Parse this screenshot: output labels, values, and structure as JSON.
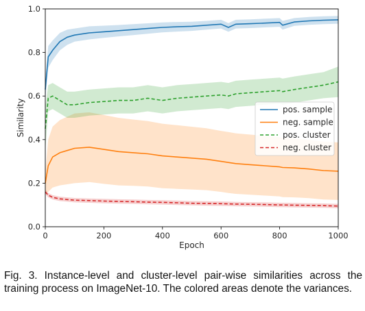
{
  "chart_data": {
    "type": "line",
    "xlabel": "Epoch",
    "ylabel": "Similarity",
    "xlim": [
      0,
      1000
    ],
    "ylim": [
      0.0,
      1.0
    ],
    "x_ticks": [
      0,
      200,
      400,
      600,
      800,
      1000
    ],
    "y_ticks": [
      0.0,
      0.2,
      0.4,
      0.6,
      0.8,
      1.0
    ],
    "x_tick_labels": [
      "0",
      "200",
      "400",
      "600",
      "800",
      "1000"
    ],
    "y_tick_labels": [
      "0.0",
      "0.2",
      "0.4",
      "0.6",
      "0.8",
      "1.0"
    ],
    "grid": false,
    "legend_position": "center-right",
    "x": [
      0,
      10,
      25,
      50,
      75,
      100,
      150,
      200,
      250,
      300,
      350,
      400,
      450,
      500,
      550,
      600,
      625,
      650,
      700,
      750,
      800,
      810,
      850,
      900,
      950,
      1000
    ],
    "series": [
      {
        "name": "pos. sample",
        "color": "#1f77b4",
        "style": "solid",
        "values": [
          0.63,
          0.78,
          0.81,
          0.85,
          0.87,
          0.88,
          0.89,
          0.895,
          0.9,
          0.905,
          0.91,
          0.915,
          0.918,
          0.92,
          0.925,
          0.93,
          0.915,
          0.93,
          0.932,
          0.935,
          0.938,
          0.925,
          0.94,
          0.945,
          0.948,
          0.95
        ],
        "band": [
          0.05,
          0.05,
          0.045,
          0.04,
          0.035,
          0.03,
          0.03,
          0.028,
          0.026,
          0.025,
          0.024,
          0.023,
          0.022,
          0.021,
          0.02,
          0.02,
          0.02,
          0.02,
          0.02,
          0.02,
          0.02,
          0.02,
          0.018,
          0.018,
          0.018,
          0.018
        ]
      },
      {
        "name": "neg. sample",
        "color": "#ff7f0e",
        "style": "solid",
        "values": [
          0.2,
          0.28,
          0.32,
          0.34,
          0.35,
          0.36,
          0.365,
          0.355,
          0.345,
          0.34,
          0.335,
          0.325,
          0.32,
          0.315,
          0.31,
          0.3,
          0.295,
          0.29,
          0.285,
          0.28,
          0.275,
          0.272,
          0.27,
          0.265,
          0.258,
          0.255
        ],
        "band": [
          0.05,
          0.12,
          0.14,
          0.15,
          0.155,
          0.16,
          0.16,
          0.158,
          0.155,
          0.152,
          0.15,
          0.148,
          0.146,
          0.144,
          0.142,
          0.14,
          0.14,
          0.139,
          0.138,
          0.137,
          0.136,
          0.136,
          0.135,
          0.134,
          0.133,
          0.132
        ]
      },
      {
        "name": "pos. cluster",
        "color": "#2ca02c",
        "style": "dashed",
        "values": [
          0.45,
          0.59,
          0.6,
          0.58,
          0.56,
          0.56,
          0.57,
          0.575,
          0.58,
          0.58,
          0.59,
          0.58,
          0.59,
          0.595,
          0.6,
          0.605,
          0.6,
          0.61,
          0.615,
          0.62,
          0.625,
          0.62,
          0.63,
          0.64,
          0.65,
          0.665
        ],
        "band": [
          0.1,
          0.06,
          0.06,
          0.06,
          0.06,
          0.06,
          0.06,
          0.06,
          0.06,
          0.06,
          0.06,
          0.06,
          0.06,
          0.06,
          0.06,
          0.06,
          0.06,
          0.06,
          0.06,
          0.06,
          0.06,
          0.06,
          0.06,
          0.06,
          0.06,
          0.07
        ]
      },
      {
        "name": "neg. cluster",
        "color": "#d62728",
        "style": "dashed",
        "values": [
          0.16,
          0.145,
          0.135,
          0.128,
          0.125,
          0.122,
          0.12,
          0.118,
          0.116,
          0.115,
          0.113,
          0.112,
          0.11,
          0.108,
          0.107,
          0.106,
          0.105,
          0.104,
          0.103,
          0.102,
          0.1,
          0.1,
          0.099,
          0.098,
          0.097,
          0.095
        ],
        "band": [
          0.01,
          0.01,
          0.01,
          0.01,
          0.01,
          0.01,
          0.01,
          0.01,
          0.01,
          0.01,
          0.01,
          0.01,
          0.01,
          0.01,
          0.01,
          0.01,
          0.01,
          0.01,
          0.01,
          0.01,
          0.01,
          0.01,
          0.01,
          0.01,
          0.01,
          0.01
        ]
      }
    ]
  },
  "caption": "Fig. 3. Instance-level and cluster-level pair-wise similarities across the training process on ImageNet-10. The colored areas denote the variances."
}
